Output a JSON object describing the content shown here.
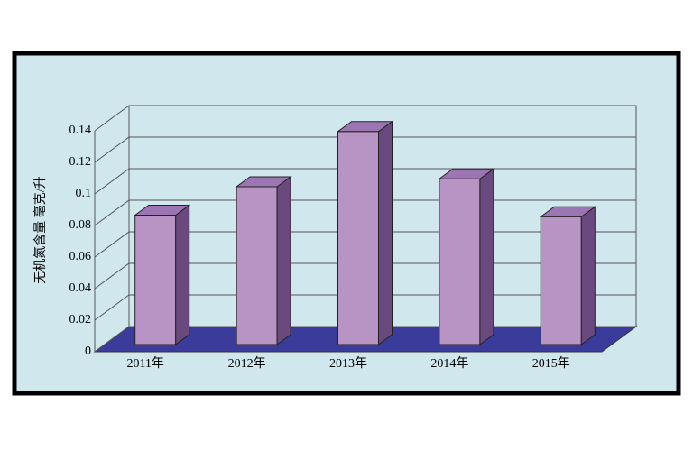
{
  "chart_data": {
    "type": "bar3d",
    "y_label": "无机氮含量 毫克/升",
    "categories": [
      "2011年",
      "2012年",
      "2013年",
      "2014年",
      "2015年"
    ],
    "values": [
      0.082,
      0.1,
      0.135,
      0.105,
      0.081
    ],
    "color": "#b794c4",
    "ylim": [
      0,
      0.14
    ],
    "yticks": [
      0,
      0.02,
      0.04,
      0.06,
      0.08,
      0.1,
      0.12,
      0.14
    ],
    "grid": true
  }
}
